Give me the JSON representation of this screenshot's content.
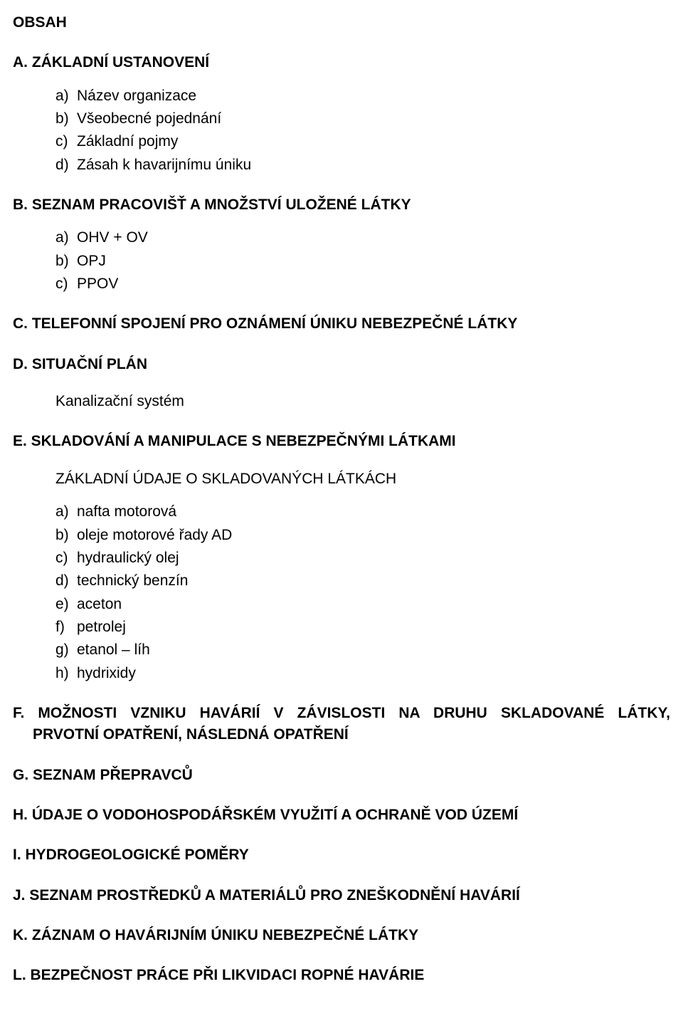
{
  "page_title": "OBSAH",
  "sections": {
    "A": {
      "heading": "A.  ZÁKLADNÍ USTANOVENÍ",
      "items": [
        "Název organizace",
        "Všeobecné pojednání",
        "Základní pojmy",
        "Zásah k havarijnímu úniku"
      ]
    },
    "B": {
      "heading": "B.  SEZNAM PRACOVIŠŤ A MNOŽSTVÍ ULOŽENÉ LÁTKY",
      "items": [
        "OHV + OV",
        "OPJ",
        "PPOV"
      ]
    },
    "C": {
      "heading": "C.  TELEFONNÍ SPOJENÍ PRO OZNÁMENÍ ÚNIKU NEBEZPEČNÉ LÁTKY"
    },
    "D": {
      "heading": "D.  SITUAČNÍ PLÁN",
      "sub": "Kanalizační systém"
    },
    "E": {
      "heading": "E.  SKLADOVÁNÍ A MANIPULACE S NEBEZPEČNÝMI LÁTKAMI",
      "sub": "ZÁKLADNÍ ÚDAJE O SKLADOVANÝCH LÁTKÁCH",
      "items": [
        "nafta motorová",
        "oleje motorové řady AD",
        "hydraulický olej",
        "technický benzín",
        "aceton",
        "petrolej",
        "etanol – líh",
        "hydrixidy"
      ]
    },
    "F": {
      "line1": "F.  MOŽNOSTI  VZNIKU  HAVÁRIÍ  V ZÁVISLOSTI  NA  DRUHU  SKLADOVANÉ  LÁTKY,",
      "line2": "PRVOTNÍ OPATŘENÍ, NÁSLEDNÁ OPATŘENÍ"
    },
    "G": {
      "heading": "G.  SEZNAM PŘEPRAVCŮ"
    },
    "H": {
      "heading": "H.  ÚDAJE O VODOHOSPODÁŘSKÉM VYUŽITÍ A OCHRANĚ VOD ÚZEMÍ"
    },
    "I": {
      "heading": "I.   HYDROGEOLOGICKÉ POMĚRY"
    },
    "J": {
      "heading": "J.   SEZNAM PROSTŘEDKŮ A MATERIÁLŮ PRO ZNEŠKODNĚNÍ HAVÁRIÍ"
    },
    "K": {
      "heading": "K.  ZÁZNAM O HAVÁRIJNÍM ÚNIKU NEBEZPEČNÉ LÁTKY"
    },
    "L": {
      "heading": "L.  BEZPEČNOST PRÁCE PŘI LIKVIDACI ROPNÉ HAVÁRIE"
    }
  },
  "letters": [
    "a)",
    "b)",
    "c)",
    "d)",
    "e)",
    "f)",
    "g)",
    "h)"
  ]
}
